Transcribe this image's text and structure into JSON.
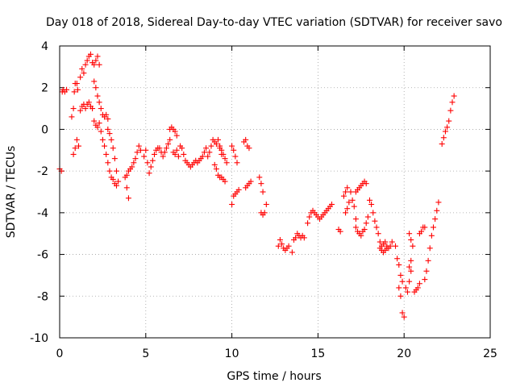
{
  "chart_data": {
    "type": "scatter",
    "title": "Day 018 of 2018, Sidereal Day-to-day VTEC variation (SDTVAR) for receiver savo",
    "xlabel": "GPS time / hours",
    "ylabel": "SDTVAR / TECUs",
    "xlim": [
      0,
      25
    ],
    "ylim": [
      -10,
      4
    ],
    "xticks": [
      0,
      5,
      10,
      15,
      20,
      25
    ],
    "yticks": [
      -10,
      -8,
      -6,
      -4,
      -2,
      0,
      2,
      4
    ],
    "grid": true,
    "marker": "plus",
    "color": "#ff0000",
    "series": [
      {
        "name": "SDTVAR",
        "points": [
          [
            0.0,
            -1.9
          ],
          [
            0.1,
            -2.0
          ],
          [
            0.15,
            1.8
          ],
          [
            0.2,
            1.9
          ],
          [
            0.3,
            1.8
          ],
          [
            0.4,
            1.9
          ],
          [
            0.7,
            0.6
          ],
          [
            0.8,
            1.0
          ],
          [
            0.85,
            1.8
          ],
          [
            0.9,
            2.2
          ],
          [
            1.0,
            2.2
          ],
          [
            1.05,
            1.9
          ],
          [
            0.8,
            -1.2
          ],
          [
            0.9,
            -0.9
          ],
          [
            1.0,
            -0.5
          ],
          [
            1.1,
            -0.8
          ],
          [
            1.2,
            2.5
          ],
          [
            1.3,
            2.9
          ],
          [
            1.4,
            2.7
          ],
          [
            1.5,
            3.1
          ],
          [
            1.6,
            3.3
          ],
          [
            1.7,
            3.5
          ],
          [
            1.8,
            3.6
          ],
          [
            1.9,
            3.2
          ],
          [
            2.0,
            3.1
          ],
          [
            2.1,
            3.3
          ],
          [
            2.2,
            3.5
          ],
          [
            2.3,
            3.1
          ],
          [
            1.2,
            0.9
          ],
          [
            1.3,
            1.1
          ],
          [
            1.4,
            1.2
          ],
          [
            1.5,
            1.0
          ],
          [
            1.6,
            1.2
          ],
          [
            1.7,
            1.3
          ],
          [
            1.8,
            1.1
          ],
          [
            1.9,
            1.0
          ],
          [
            2.0,
            2.3
          ],
          [
            2.1,
            2.0
          ],
          [
            2.2,
            1.6
          ],
          [
            2.3,
            1.3
          ],
          [
            2.4,
            1.0
          ],
          [
            2.5,
            0.7
          ],
          [
            2.6,
            0.6
          ],
          [
            2.7,
            0.7
          ],
          [
            2.8,
            0.5
          ],
          [
            2.0,
            0.4
          ],
          [
            2.1,
            0.2
          ],
          [
            2.2,
            0.1
          ],
          [
            2.3,
            0.3
          ],
          [
            2.4,
            -0.1
          ],
          [
            2.5,
            -0.5
          ],
          [
            2.6,
            -0.8
          ],
          [
            2.7,
            -1.2
          ],
          [
            2.8,
            -1.6
          ],
          [
            2.9,
            -2.0
          ],
          [
            3.0,
            -2.3
          ],
          [
            3.1,
            -2.4
          ],
          [
            3.2,
            -2.6
          ],
          [
            3.3,
            -2.7
          ],
          [
            2.8,
            0.0
          ],
          [
            2.9,
            -0.2
          ],
          [
            3.0,
            -0.5
          ],
          [
            3.1,
            -0.9
          ],
          [
            3.2,
            -1.4
          ],
          [
            3.3,
            -2.0
          ],
          [
            3.4,
            -2.5
          ],
          [
            3.8,
            -2.3
          ],
          [
            3.9,
            -2.8
          ],
          [
            4.0,
            -3.3
          ],
          [
            3.9,
            -2.2
          ],
          [
            4.0,
            -2.0
          ],
          [
            4.1,
            -1.9
          ],
          [
            4.2,
            -1.8
          ],
          [
            4.3,
            -1.6
          ],
          [
            4.4,
            -1.4
          ],
          [
            4.5,
            -1.1
          ],
          [
            4.6,
            -0.8
          ],
          [
            4.7,
            -1.0
          ],
          [
            4.9,
            -1.3
          ],
          [
            5.0,
            -1.0
          ],
          [
            5.1,
            -1.6
          ],
          [
            5.2,
            -2.1
          ],
          [
            5.3,
            -1.8
          ],
          [
            5.4,
            -1.5
          ],
          [
            5.5,
            -1.2
          ],
          [
            5.6,
            -1.0
          ],
          [
            5.7,
            -0.9
          ],
          [
            5.8,
            -0.9
          ],
          [
            5.9,
            -1.1
          ],
          [
            6.0,
            -1.3
          ],
          [
            6.1,
            -1.1
          ],
          [
            6.2,
            -0.9
          ],
          [
            6.3,
            -0.7
          ],
          [
            6.4,
            -0.5
          ],
          [
            6.4,
            0.0
          ],
          [
            6.5,
            0.1
          ],
          [
            6.6,
            0.0
          ],
          [
            6.7,
            -0.1
          ],
          [
            6.8,
            -0.3
          ],
          [
            6.6,
            -1.1
          ],
          [
            6.7,
            -1.2
          ],
          [
            6.8,
            -1.0
          ],
          [
            6.9,
            -1.3
          ],
          [
            7.0,
            -0.8
          ],
          [
            7.1,
            -0.9
          ],
          [
            7.2,
            -1.2
          ],
          [
            7.3,
            -1.5
          ],
          [
            7.4,
            -1.6
          ],
          [
            7.5,
            -1.7
          ],
          [
            7.6,
            -1.8
          ],
          [
            7.7,
            -1.7
          ],
          [
            7.8,
            -1.6
          ],
          [
            7.9,
            -1.5
          ],
          [
            8.0,
            -1.6
          ],
          [
            8.1,
            -1.5
          ],
          [
            8.2,
            -1.4
          ],
          [
            8.3,
            -1.3
          ],
          [
            8.4,
            -1.1
          ],
          [
            8.5,
            -0.9
          ],
          [
            8.6,
            -1.3
          ],
          [
            8.7,
            -1.1
          ],
          [
            8.8,
            -0.8
          ],
          [
            8.9,
            -0.5
          ],
          [
            9.0,
            -0.6
          ],
          [
            9.1,
            -0.7
          ],
          [
            9.2,
            -0.5
          ],
          [
            9.3,
            -0.9
          ],
          [
            9.4,
            -1.2
          ],
          [
            9.0,
            -1.7
          ],
          [
            9.1,
            -1.9
          ],
          [
            9.2,
            -2.2
          ],
          [
            9.3,
            -2.3
          ],
          [
            9.4,
            -2.3
          ],
          [
            9.5,
            -2.4
          ],
          [
            9.6,
            -2.5
          ],
          [
            9.3,
            -0.8
          ],
          [
            9.4,
            -1.0
          ],
          [
            9.5,
            -1.2
          ],
          [
            9.6,
            -1.4
          ],
          [
            9.7,
            -1.6
          ],
          [
            10.0,
            -0.8
          ],
          [
            10.1,
            -1.0
          ],
          [
            10.2,
            -1.3
          ],
          [
            10.3,
            -1.6
          ],
          [
            10.0,
            -3.6
          ],
          [
            10.1,
            -3.2
          ],
          [
            10.2,
            -3.1
          ],
          [
            10.3,
            -3.0
          ],
          [
            10.4,
            -2.9
          ],
          [
            10.7,
            -0.6
          ],
          [
            10.8,
            -0.5
          ],
          [
            10.9,
            -0.8
          ],
          [
            11.0,
            -0.9
          ],
          [
            10.8,
            -2.8
          ],
          [
            10.9,
            -2.7
          ],
          [
            11.0,
            -2.6
          ],
          [
            11.1,
            -2.5
          ],
          [
            11.6,
            -2.3
          ],
          [
            11.7,
            -2.6
          ],
          [
            11.8,
            -3.0
          ],
          [
            11.7,
            -4.0
          ],
          [
            11.8,
            -4.1
          ],
          [
            11.9,
            -4.0
          ],
          [
            12.0,
            -3.6
          ],
          [
            12.7,
            -5.6
          ],
          [
            12.8,
            -5.3
          ],
          [
            12.9,
            -5.5
          ],
          [
            13.0,
            -5.7
          ],
          [
            13.1,
            -5.8
          ],
          [
            13.2,
            -5.7
          ],
          [
            13.3,
            -5.6
          ],
          [
            13.5,
            -5.9
          ],
          [
            13.6,
            -5.3
          ],
          [
            13.7,
            -5.2
          ],
          [
            13.8,
            -5.0
          ],
          [
            13.9,
            -5.1
          ],
          [
            14.0,
            -5.2
          ],
          [
            14.1,
            -5.1
          ],
          [
            14.2,
            -5.2
          ],
          [
            14.4,
            -4.5
          ],
          [
            14.5,
            -4.2
          ],
          [
            14.6,
            -4.0
          ],
          [
            14.7,
            -3.9
          ],
          [
            14.8,
            -4.0
          ],
          [
            14.9,
            -4.1
          ],
          [
            15.0,
            -4.2
          ],
          [
            15.1,
            -4.3
          ],
          [
            15.2,
            -4.2
          ],
          [
            15.3,
            -4.1
          ],
          [
            15.4,
            -4.0
          ],
          [
            15.5,
            -3.9
          ],
          [
            15.6,
            -3.8
          ],
          [
            15.7,
            -3.7
          ],
          [
            15.8,
            -3.6
          ],
          [
            16.2,
            -4.8
          ],
          [
            16.3,
            -4.9
          ],
          [
            16.5,
            -3.2
          ],
          [
            16.6,
            -3.0
          ],
          [
            16.7,
            -2.8
          ],
          [
            16.6,
            -4.0
          ],
          [
            16.7,
            -3.8
          ],
          [
            16.8,
            -3.5
          ],
          [
            16.9,
            -3.0
          ],
          [
            17.0,
            -3.4
          ],
          [
            17.1,
            -3.7
          ],
          [
            17.2,
            -4.3
          ],
          [
            17.2,
            -3.0
          ],
          [
            17.3,
            -2.9
          ],
          [
            17.4,
            -2.8
          ],
          [
            17.5,
            -2.7
          ],
          [
            17.6,
            -2.6
          ],
          [
            17.7,
            -2.5
          ],
          [
            17.8,
            -2.6
          ],
          [
            17.2,
            -4.7
          ],
          [
            17.3,
            -4.9
          ],
          [
            17.4,
            -5.0
          ],
          [
            17.5,
            -5.1
          ],
          [
            17.6,
            -4.9
          ],
          [
            17.7,
            -4.8
          ],
          [
            17.8,
            -4.5
          ],
          [
            17.9,
            -4.2
          ],
          [
            18.0,
            -3.4
          ],
          [
            18.1,
            -3.6
          ],
          [
            18.2,
            -4.0
          ],
          [
            18.3,
            -4.4
          ],
          [
            18.4,
            -4.7
          ],
          [
            18.5,
            -5.0
          ],
          [
            18.6,
            -5.4
          ],
          [
            18.7,
            -5.6
          ],
          [
            18.8,
            -5.5
          ],
          [
            18.9,
            -5.4
          ],
          [
            19.0,
            -5.6
          ],
          [
            19.1,
            -5.7
          ],
          [
            19.2,
            -5.6
          ],
          [
            19.3,
            -5.4
          ],
          [
            18.6,
            -5.7
          ],
          [
            18.7,
            -5.8
          ],
          [
            18.8,
            -5.9
          ],
          [
            18.9,
            -5.8
          ],
          [
            19.0,
            -5.7
          ],
          [
            19.5,
            -5.6
          ],
          [
            19.6,
            -6.2
          ],
          [
            19.7,
            -6.5
          ],
          [
            19.7,
            -7.6
          ],
          [
            19.8,
            -8.0
          ],
          [
            19.9,
            -8.8
          ],
          [
            20.0,
            -9.0
          ],
          [
            19.8,
            -7.0
          ],
          [
            19.9,
            -7.3
          ],
          [
            20.1,
            -7.6
          ],
          [
            20.2,
            -7.8
          ],
          [
            20.3,
            -7.3
          ],
          [
            20.4,
            -6.8
          ],
          [
            20.3,
            -6.6
          ],
          [
            20.4,
            -6.3
          ],
          [
            20.3,
            -5.0
          ],
          [
            20.4,
            -5.3
          ],
          [
            20.5,
            -5.6
          ],
          [
            20.6,
            -7.8
          ],
          [
            20.7,
            -7.7
          ],
          [
            20.8,
            -7.6
          ],
          [
            20.9,
            -7.4
          ],
          [
            20.9,
            -5.0
          ],
          [
            21.0,
            -4.9
          ],
          [
            21.1,
            -4.7
          ],
          [
            21.2,
            -4.7
          ],
          [
            21.2,
            -7.2
          ],
          [
            21.3,
            -6.8
          ],
          [
            21.4,
            -6.3
          ],
          [
            21.5,
            -5.7
          ],
          [
            21.6,
            -5.1
          ],
          [
            21.7,
            -4.7
          ],
          [
            21.8,
            -4.3
          ],
          [
            21.9,
            -3.9
          ],
          [
            22.0,
            -3.5
          ],
          [
            22.2,
            -0.7
          ],
          [
            22.3,
            -0.4
          ],
          [
            22.4,
            -0.1
          ],
          [
            22.5,
            0.1
          ],
          [
            22.6,
            0.4
          ],
          [
            22.7,
            0.9
          ],
          [
            22.8,
            1.3
          ],
          [
            22.9,
            1.6
          ]
        ]
      }
    ]
  },
  "axes": {
    "xtick_labels": [
      "0",
      "5",
      "10",
      "15",
      "20",
      "25"
    ],
    "ytick_labels": [
      "-10",
      "-8",
      "-6",
      "-4",
      "-2",
      "0",
      "2",
      "4"
    ]
  }
}
